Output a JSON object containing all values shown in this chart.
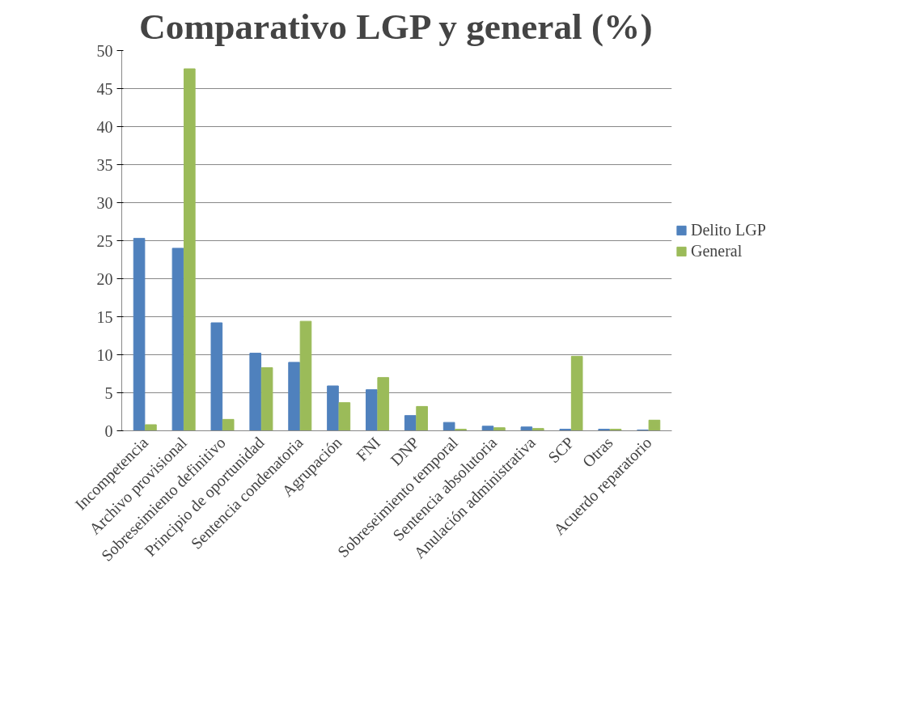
{
  "chart_data": {
    "type": "bar",
    "title": "Comparativo LGP y general (%)",
    "categories": [
      "Incompetencia",
      "Archivo provisional",
      "Sobreseimiento definitivo",
      "Principio de oportunidad",
      "Sentencia condenatoria",
      "Agrupación",
      "FNI",
      "DNP",
      "Sobreseimiento temporal",
      "Sentencia absolutoria",
      "Anulación administrativa",
      "SCP",
      "Otras",
      "Acuerdo reparatorio"
    ],
    "series": [
      {
        "name": "Delito LGP",
        "color": "#4f81bd",
        "values": [
          25.3,
          24.0,
          14.2,
          10.2,
          9.0,
          5.9,
          5.4,
          2.0,
          1.1,
          0.6,
          0.5,
          0.2,
          0.2,
          0.1
        ]
      },
      {
        "name": "General",
        "color": "#9bbb59",
        "values": [
          0.8,
          47.6,
          1.5,
          8.3,
          14.4,
          3.7,
          7.0,
          3.2,
          0.2,
          0.4,
          0.3,
          9.8,
          0.2,
          1.4
        ]
      }
    ],
    "ylim": [
      0,
      50
    ],
    "yticks": [
      0,
      5,
      10,
      15,
      20,
      25,
      30,
      35,
      40,
      45,
      50
    ],
    "grid": "y",
    "legend": "right"
  }
}
